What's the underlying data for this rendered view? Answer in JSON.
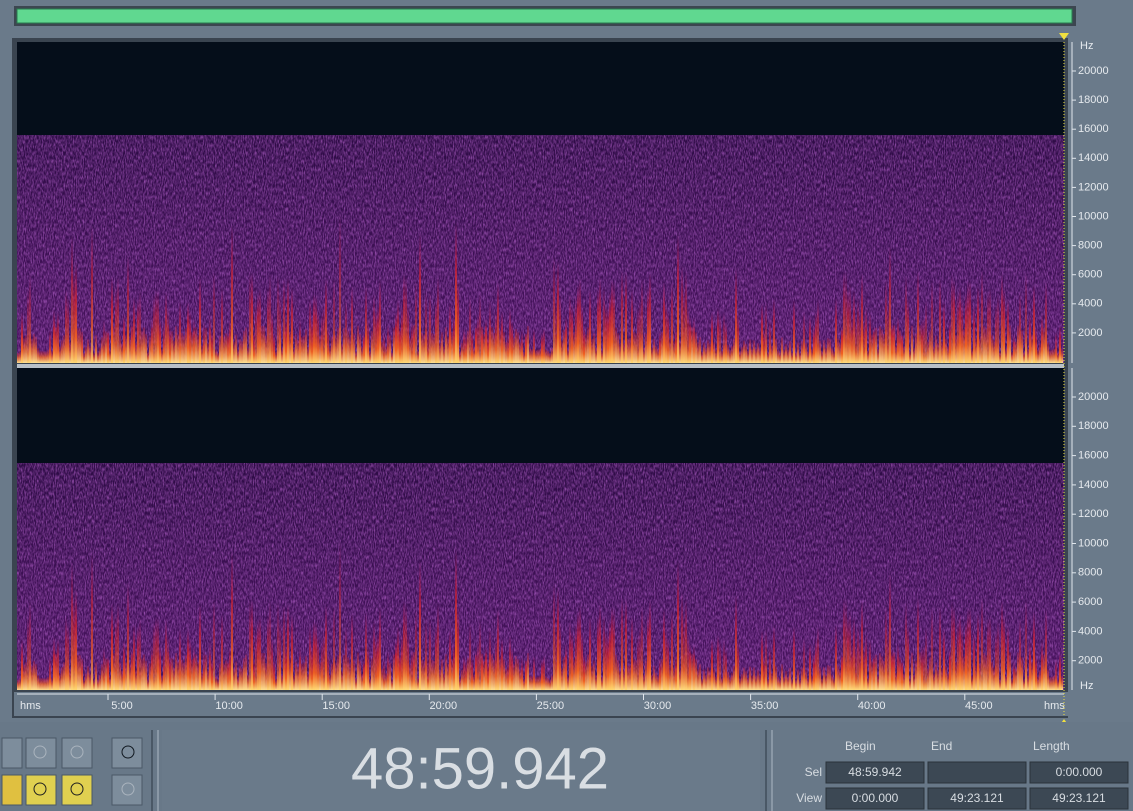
{
  "frequency_axis": {
    "top": {
      "unit": "Hz",
      "labels": [
        "20000",
        "18000",
        "16000",
        "14000",
        "12000",
        "10000",
        "8000",
        "6000",
        "4000",
        "2000"
      ]
    },
    "bottom": {
      "unit": "Hz",
      "labels": [
        "20000",
        "18000",
        "16000",
        "14000",
        "12000",
        "10000",
        "8000",
        "6000",
        "4000",
        "2000"
      ]
    }
  },
  "time_axis": {
    "unit_left": "hms",
    "labels": [
      "5:00",
      "10:00",
      "15:00",
      "20:00",
      "25:00",
      "30:00",
      "35:00",
      "40:00",
      "45:00"
    ],
    "unit_right": "hms"
  },
  "time_display": "48:59.942",
  "selection_panel": {
    "headers": [
      "Begin",
      "End",
      "Length"
    ],
    "sel": {
      "label": "Sel",
      "begin": "48:59.942",
      "length": "0:00.000"
    },
    "view": {
      "label": "View",
      "begin": "0:00.000",
      "end": "49:23.121",
      "length": "49:23.121"
    }
  }
}
